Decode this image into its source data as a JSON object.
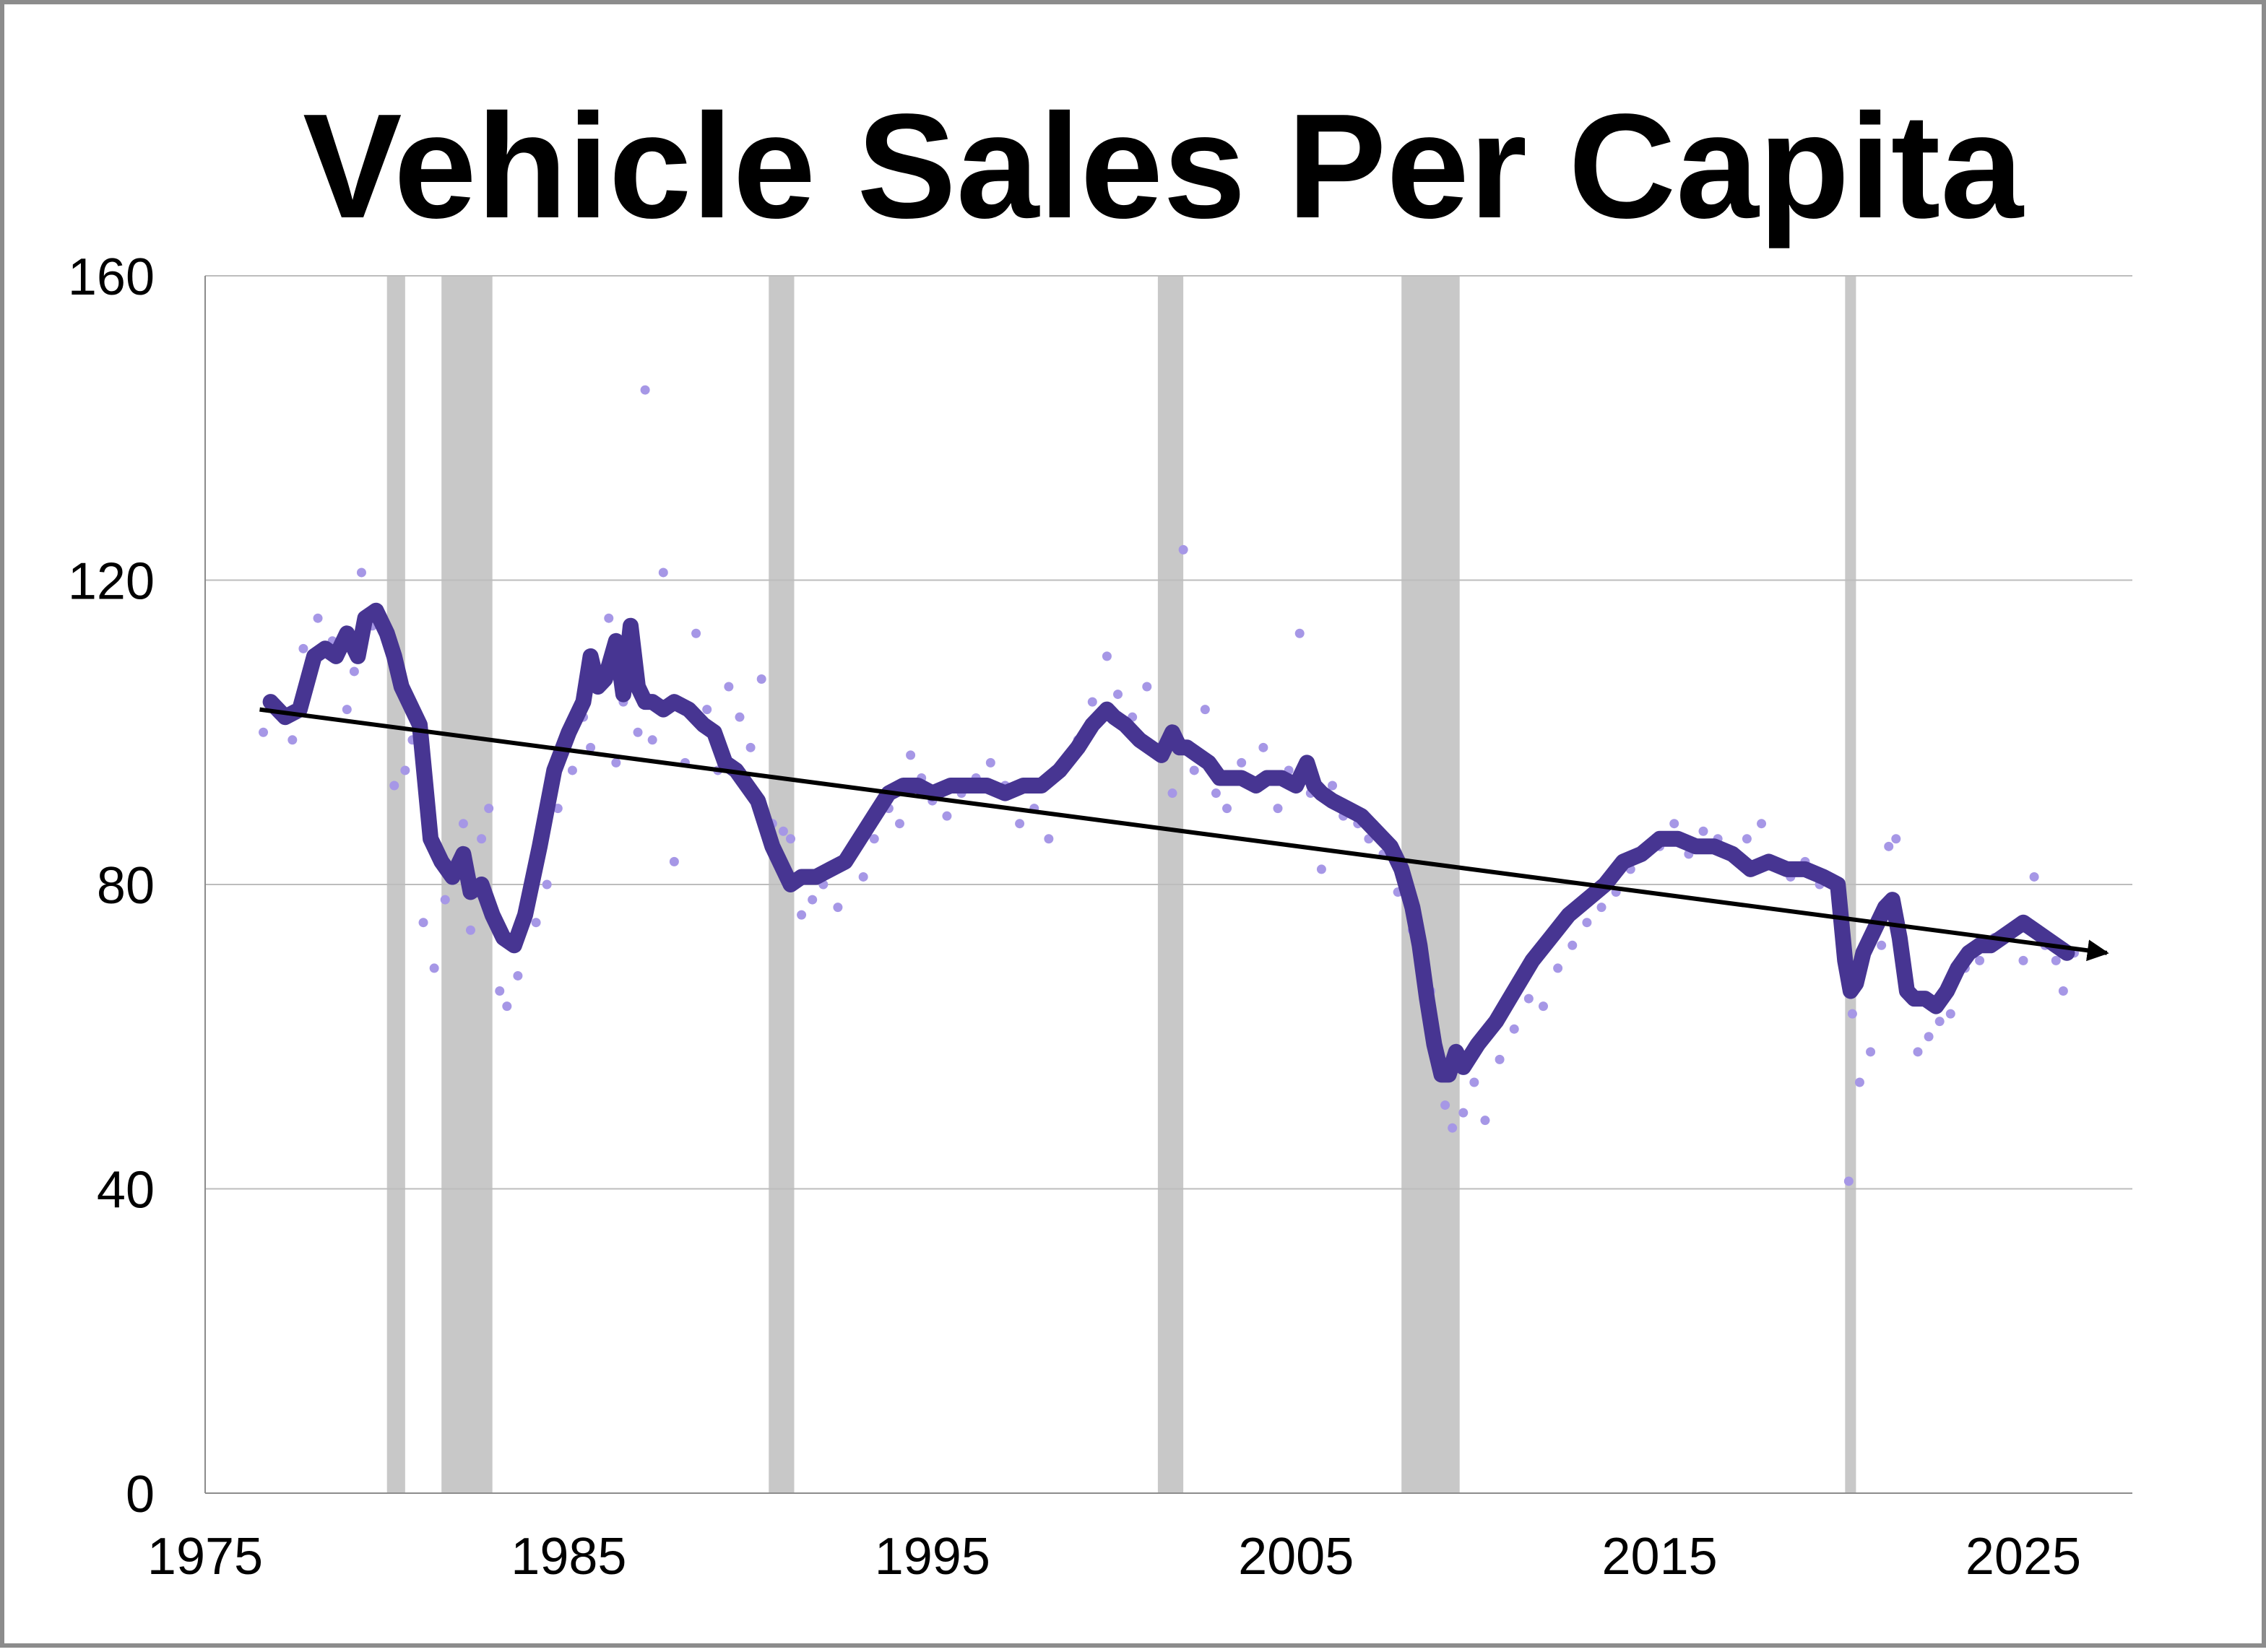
{
  "chart_data": {
    "type": "line",
    "title": "Vehicle Sales Per Capita",
    "xlabel": "",
    "ylabel": "",
    "xlim": [
      1975,
      2028
    ],
    "ylim": [
      0,
      160
    ],
    "x_ticks": [
      1975,
      1985,
      1995,
      2005,
      2015,
      2025
    ],
    "x_tick_labels": [
      "1975",
      "1985",
      "1995",
      "2005",
      "2015",
      "2025"
    ],
    "y_ticks": [
      0,
      40,
      80,
      120,
      160
    ],
    "y_tick_labels": [
      "0",
      "40",
      "80",
      "120",
      "160"
    ],
    "grid": "horizontal",
    "legend": "none",
    "recession_bands": [
      [
        1980.0,
        1980.5
      ],
      [
        1981.5,
        1982.9
      ],
      [
        1990.5,
        1991.2
      ],
      [
        2001.2,
        2001.9
      ],
      [
        2007.9,
        2009.5
      ],
      [
        2020.1,
        2020.4
      ]
    ],
    "series": [
      {
        "style": "thick-line",
        "color": "#473592",
        "x": [
          1976.8,
          1977.2,
          1977.6,
          1978.0,
          1978.3,
          1978.6,
          1978.9,
          1979.2,
          1979.4,
          1979.7,
          1980.0,
          1980.2,
          1980.4,
          1980.6,
          1980.9,
          1981.2,
          1981.5,
          1981.8,
          1982.1,
          1982.3,
          1982.6,
          1982.9,
          1983.2,
          1983.5,
          1983.8,
          1984.2,
          1984.6,
          1985.0,
          1985.4,
          1985.6,
          1985.8,
          1986.0,
          1986.3,
          1986.5,
          1986.7,
          1986.9,
          1987.1,
          1987.3,
          1987.6,
          1987.9,
          1988.3,
          1988.7,
          1989.0,
          1989.3,
          1989.6,
          1989.9,
          1990.2,
          1990.6,
          1990.9,
          1991.1,
          1991.4,
          1991.8,
          1992.2,
          1992.6,
          1993.0,
          1993.4,
          1993.8,
          1994.2,
          1994.6,
          1995.0,
          1995.5,
          1996.0,
          1996.5,
          1997.0,
          1997.5,
          1998.0,
          1998.5,
          1999.0,
          1999.4,
          1999.8,
          2000.0,
          2000.3,
          2000.7,
          2001.0,
          2001.3,
          2001.6,
          2001.8,
          2002.0,
          2002.3,
          2002.6,
          2002.9,
          2003.2,
          2003.5,
          2003.9,
          2004.2,
          2004.6,
          2005.0,
          2005.3,
          2005.5,
          2005.7,
          2006.0,
          2006.4,
          2006.8,
          2007.2,
          2007.6,
          2007.9,
          2008.2,
          2008.4,
          2008.6,
          2008.8,
          2009.0,
          2009.2,
          2009.4,
          2009.6,
          2010.0,
          2010.5,
          2011.0,
          2011.5,
          2012.0,
          2012.5,
          2013.0,
          2013.5,
          2014.0,
          2014.5,
          2015.0,
          2015.5,
          2016.0,
          2016.5,
          2017.0,
          2017.5,
          2018.0,
          2018.5,
          2019.0,
          2019.5,
          2019.9,
          2020.1,
          2020.25,
          2020.4,
          2020.6,
          2020.9,
          2021.2,
          2021.4,
          2021.6,
          2021.8,
          2022.0,
          2022.3,
          2022.6,
          2022.9,
          2023.2,
          2023.5,
          2023.8,
          2024.1,
          2024.4,
          2024.7,
          2025.0,
          2025.3,
          2025.6,
          2025.9,
          2026.2
        ],
        "y": [
          104,
          102,
          103,
          110,
          111,
          110,
          113,
          110,
          115,
          116,
          113,
          110,
          106,
          104,
          101,
          86,
          83,
          81,
          84,
          79,
          80,
          76,
          73,
          72,
          76,
          85,
          95,
          100,
          104,
          110,
          106,
          107,
          112,
          105,
          114,
          106,
          104,
          104,
          103,
          104,
          103,
          101,
          100,
          96,
          95,
          93,
          91,
          85,
          82,
          80,
          81,
          81,
          82,
          83,
          86,
          89,
          92,
          93,
          93,
          92,
          93,
          93,
          93,
          92,
          93,
          93,
          95,
          98,
          101,
          103,
          102,
          101,
          99,
          98,
          97,
          100,
          98,
          98,
          97,
          96,
          94,
          94,
          94,
          93,
          94,
          94,
          93,
          96,
          93,
          92,
          91,
          90,
          89,
          87,
          85,
          82,
          77,
          72,
          65,
          59,
          55,
          55,
          58,
          56,
          59,
          62,
          66,
          70,
          73,
          76,
          78,
          80,
          83,
          84,
          86,
          86,
          85,
          85,
          84,
          82,
          83,
          82,
          82,
          81,
          80,
          70,
          66,
          67,
          71,
          74,
          77,
          78,
          73,
          66,
          65,
          65,
          64,
          66,
          69,
          71,
          72,
          72,
          73,
          74,
          75,
          74,
          73,
          72,
          71
        ]
      },
      {
        "style": "scatter",
        "color": "#a697e6",
        "x": [
          1976.6,
          1976.8,
          1977.1,
          1977.4,
          1977.7,
          1978.1,
          1978.5,
          1978.9,
          1979.1,
          1979.3,
          1979.6,
          1980.0,
          1980.2,
          1980.5,
          1980.7,
          1981.0,
          1981.3,
          1981.6,
          1981.8,
          1982.1,
          1982.3,
          1982.6,
          1982.8,
          1983.1,
          1983.3,
          1983.6,
          1983.8,
          1984.1,
          1984.4,
          1984.7,
          1985.1,
          1985.4,
          1985.6,
          1985.9,
          1986.1,
          1986.3,
          1986.5,
          1986.7,
          1986.9,
          1987.1,
          1987.3,
          1987.6,
          1987.9,
          1988.2,
          1988.5,
          1988.8,
          1989.1,
          1989.4,
          1989.7,
          1990.0,
          1990.3,
          1990.6,
          1990.9,
          1991.1,
          1991.4,
          1991.7,
          1992.0,
          1992.4,
          1992.8,
          1993.1,
          1993.4,
          1993.8,
          1994.1,
          1994.4,
          1994.7,
          1995.0,
          1995.4,
          1995.8,
          1996.2,
          1996.6,
          1997.0,
          1997.4,
          1997.8,
          1998.2,
          1998.6,
          1999.0,
          1999.4,
          1999.8,
          2000.1,
          2000.5,
          2000.9,
          2001.3,
          2001.6,
          2001.9,
          2002.2,
          2002.5,
          2002.8,
          2003.1,
          2003.5,
          2003.8,
          2004.1,
          2004.5,
          2004.8,
          2005.1,
          2005.4,
          2005.7,
          2006.0,
          2006.3,
          2006.7,
          2007.0,
          2007.4,
          2007.8,
          2008.2,
          2008.5,
          2008.7,
          2008.9,
          2009.1,
          2009.3,
          2009.6,
          2009.9,
          2010.2,
          2010.6,
          2011.0,
          2011.4,
          2011.8,
          2012.2,
          2012.6,
          2013.0,
          2013.4,
          2013.8,
          2014.2,
          2014.6,
          2015.0,
          2015.4,
          2015.8,
          2016.2,
          2016.6,
          2017.0,
          2017.4,
          2017.8,
          2018.2,
          2018.6,
          2019.0,
          2019.4,
          2019.8,
          2020.0,
          2020.2,
          2020.3,
          2020.5,
          2020.8,
          2021.1,
          2021.3,
          2021.5,
          2021.8,
          2022.1,
          2022.4,
          2022.7,
          2023.0,
          2023.4,
          2023.8,
          2024.2,
          2024.6,
          2025.0,
          2025.3,
          2025.6,
          2025.9,
          2026.1,
          2026.4
        ],
        "y": [
          100,
          104,
          102,
          99,
          111,
          115,
          112,
          103,
          108,
          121,
          114,
          112,
          93,
          95,
          99,
          75,
          69,
          78,
          81,
          88,
          74,
          86,
          90,
          66,
          64,
          68,
          78,
          75,
          80,
          90,
          95,
          102,
          98,
          107,
          115,
          96,
          104,
          109,
          100,
          145,
          99,
          121,
          83,
          96,
          113,
          103,
          95,
          106,
          102,
          98,
          107,
          88,
          87,
          86,
          76,
          78,
          80,
          77,
          84,
          81,
          86,
          90,
          88,
          97,
          94,
          91,
          89,
          92,
          94,
          96,
          93,
          88,
          90,
          86,
          95,
          99,
          104,
          110,
          105,
          102,
          106,
          97,
          92,
          124,
          95,
          103,
          92,
          90,
          96,
          93,
          98,
          90,
          95,
          113,
          92,
          82,
          93,
          89,
          88,
          86,
          84,
          79,
          74,
          70,
          66,
          56,
          51,
          48,
          50,
          54,
          49,
          57,
          61,
          65,
          64,
          69,
          72,
          75,
          77,
          79,
          82,
          84,
          85,
          88,
          84,
          87,
          86,
          84,
          86,
          88,
          83,
          81,
          83,
          80,
          80,
          73,
          41,
          63,
          54,
          58,
          72,
          85,
          86,
          66,
          58,
          60,
          62,
          63,
          69,
          70,
          73,
          74,
          70,
          81,
          72,
          70,
          66,
          71
        ]
      },
      {
        "style": "trend-arrow",
        "color": "#000000",
        "x": [
          1976.5,
          2027.3
        ],
        "y": [
          103,
          71
        ]
      }
    ]
  }
}
